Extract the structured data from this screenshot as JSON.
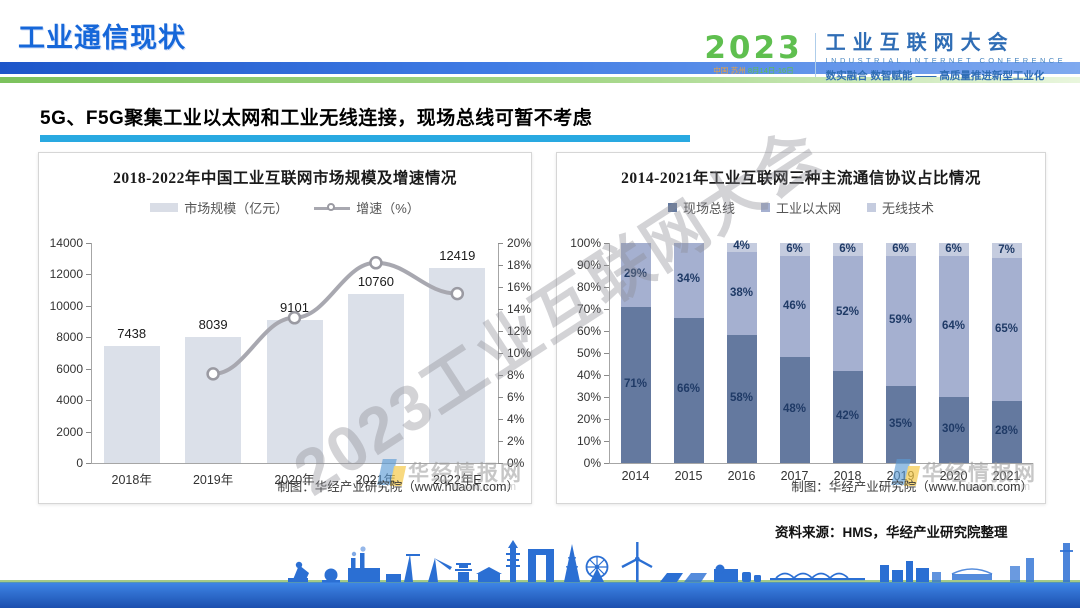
{
  "header": {
    "title": "工业通信现状",
    "logo": {
      "year": "2023",
      "location": "中国·苏州",
      "dates": "8月14日-16日",
      "event_cn": "工业互联网大会",
      "event_en": "INDUSTRIAL INTERNET CONFERENCE",
      "tagline": "数实融合  数智赋能 —— 高质量推进新型工业化",
      "year_color": "#5fbf4f",
      "event_color": "#2f6db5"
    }
  },
  "subtitle": "5G、F5G聚集工业以太网和工业无线连接，现场总线可暂不考虑",
  "watermark_text": "2023工业互联网大会",
  "site_watermark": {
    "name": "华经情报网",
    "domain": "huaon.com"
  },
  "source_note": "资料来源：HMS，华经产业研究院整理",
  "chart_data": [
    {
      "type": "bar",
      "title": "2018-2022年中国工业互联网市场规模及增速情况",
      "categories": [
        "2018年",
        "2019年",
        "2020年",
        "2021年",
        "2022年E"
      ],
      "series": [
        {
          "name": "市场规模（亿元）",
          "kind": "bar",
          "color": "#dbe0e9",
          "values": [
            7438,
            8039,
            9101,
            10760,
            12419
          ]
        },
        {
          "name": "增速（%）",
          "kind": "line",
          "color": "#a8a8b0",
          "values": [
            null,
            8.1,
            13.2,
            18.2,
            15.4
          ]
        }
      ],
      "bar_labels": [
        "7438",
        "8039",
        "9101",
        "10760",
        "12419"
      ],
      "y_left": {
        "min": 0,
        "max": 14000,
        "step": 2000,
        "suffix": ""
      },
      "y_right": {
        "min": 0,
        "max": 20,
        "step": 2,
        "suffix": "%"
      },
      "grid": false,
      "legend_position": "top",
      "footer": "制图：华经产业研究院（www.huaon.com）"
    },
    {
      "type": "bar",
      "stacked": true,
      "title": "2014-2021年工业互联网三种主流通信协议占比情况",
      "categories": [
        "2014",
        "2015",
        "2016",
        "2017",
        "2018",
        "2019",
        "2020",
        "2021"
      ],
      "series": [
        {
          "name": "现场总线",
          "color": "#64799f",
          "values": [
            71,
            66,
            58,
            48,
            42,
            35,
            30,
            28
          ]
        },
        {
          "name": "工业以太网",
          "color": "#a5b0d0",
          "values": [
            29,
            34,
            38,
            46,
            52,
            59,
            64,
            65
          ]
        },
        {
          "name": "无线技术",
          "color": "#c5ccdf",
          "values": [
            0,
            0,
            4,
            6,
            6,
            6,
            6,
            7
          ]
        }
      ],
      "y_left": {
        "min": 0,
        "max": 100,
        "step": 10,
        "suffix": "%"
      },
      "grid": false,
      "legend_position": "top",
      "footer": "制图：华经产业研究院（www.huaon.com）"
    }
  ]
}
